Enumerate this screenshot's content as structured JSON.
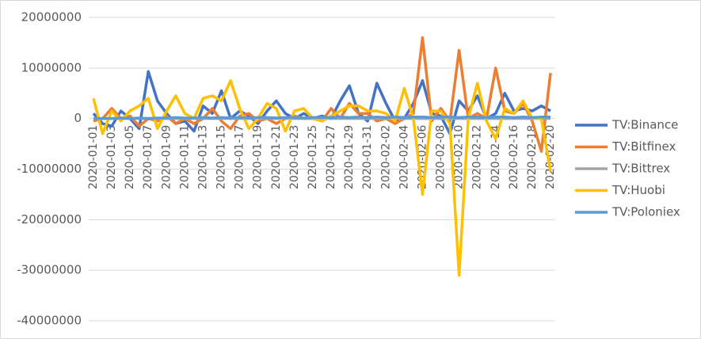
{
  "chart_data": {
    "type": "line",
    "categories": [
      "2020-01-01",
      null,
      "2020-01-03",
      null,
      "2020-01-05",
      null,
      "2020-01-07",
      null,
      "2020-01-09",
      null,
      "2020-01-11",
      null,
      "2020-01-13",
      null,
      "2020-01-15",
      null,
      "2020-01-17",
      null,
      "2020-01-19",
      null,
      "2020-01-21",
      null,
      "2020-01-23",
      null,
      "2020-01-25",
      null,
      "2020-01-27",
      null,
      "2020-01-29",
      null,
      "2020-01-31",
      null,
      "2020-02-02",
      null,
      "2020-02-04",
      null,
      "2020-02-06",
      null,
      "2020-02-08",
      null,
      "2020-02-10",
      null,
      "2020-02-12",
      null,
      "2020-02-14",
      null,
      "2020-02-16",
      null,
      "2020-02-18",
      null,
      "2020-02-20"
    ],
    "series": [
      {
        "name": "TV:Binance",
        "color": "#4472c4",
        "values": [
          1000000,
          -1000000,
          -1500000,
          1500000,
          0,
          -2000000,
          9300000,
          3500000,
          1000000,
          -1000000,
          -500000,
          -2500000,
          2500000,
          1000000,
          5500000,
          0,
          1500000,
          500000,
          -1000000,
          1500000,
          3500000,
          1000000,
          0,
          1000000,
          0,
          500000,
          0,
          3500000,
          6500000,
          1000000,
          -500000,
          7000000,
          3000000,
          -500000,
          0,
          3000000,
          7500000,
          1000000,
          500000,
          -3000000,
          3500000,
          1500000,
          4500000,
          0,
          1000000,
          5000000,
          1500000,
          2000000,
          1500000,
          2500000,
          1500000
        ]
      },
      {
        "name": "TV:Bitfinex",
        "color": "#ed7d31",
        "values": [
          -500000,
          0,
          2000000,
          0,
          500000,
          -1500000,
          0,
          -500000,
          500000,
          -1000000,
          0,
          -1000000,
          0,
          2000000,
          -500000,
          -2000000,
          500000,
          1000000,
          -500000,
          0,
          -1000000,
          0,
          500000,
          0,
          0,
          -500000,
          2000000,
          0,
          3000000,
          1000000,
          1000000,
          -500000,
          0,
          -1000000,
          0,
          1000000,
          16000000,
          -500000,
          2000000,
          -500000,
          13500000,
          0,
          1000000,
          0,
          10000000,
          1500000,
          1000000,
          3000000,
          -500000,
          -6500000,
          9000000
        ]
      },
      {
        "name": "TV:Bittrex",
        "color": "#a5a5a5",
        "values": [
          0,
          0,
          0,
          0,
          0,
          0,
          0,
          0,
          0,
          0,
          0,
          0,
          0,
          0,
          0,
          0,
          0,
          0,
          0,
          0,
          0,
          0,
          0,
          0,
          0,
          0,
          0,
          0,
          0,
          0,
          0,
          0,
          0,
          0,
          0,
          0,
          0,
          0,
          0,
          0,
          0,
          0,
          0,
          0,
          0,
          0,
          0,
          0,
          0,
          0,
          0
        ]
      },
      {
        "name": "TV:Huobi",
        "color": "#ffc000",
        "values": [
          4000000,
          -3000000,
          1500000,
          -500000,
          1500000,
          2500000,
          4000000,
          -2000000,
          1500000,
          4500000,
          1000000,
          0,
          4000000,
          4500000,
          3500000,
          7500000,
          2000000,
          -2000000,
          0,
          3000000,
          2000000,
          -2500000,
          1500000,
          2000000,
          0,
          -500000,
          500000,
          1500000,
          2500000,
          2500000,
          1500000,
          1500000,
          1000000,
          -500000,
          6000000,
          0,
          -15000000,
          1500000,
          1500000,
          -1000000,
          -31000000,
          0,
          7000000,
          -500000,
          -4000000,
          2000000,
          1000000,
          3500000,
          0,
          0,
          -10500000
        ]
      },
      {
        "name": "TV:Poloniex",
        "color": "#5b9bd5",
        "values": [
          0,
          0,
          0,
          100000,
          0,
          100000,
          0,
          100000,
          100000,
          200000,
          100000,
          100000,
          200000,
          100000,
          200000,
          100000,
          200000,
          100000,
          200000,
          200000,
          100000,
          200000,
          200000,
          100000,
          200000,
          200000,
          200000,
          300000,
          200000,
          300000,
          200000,
          300000,
          200000,
          300000,
          200000,
          300000,
          300000,
          200000,
          300000,
          300000,
          200000,
          300000,
          300000,
          200000,
          300000,
          300000,
          200000,
          300000,
          200000,
          300000,
          300000
        ]
      }
    ],
    "ylim": [
      -40000000,
      20000000
    ],
    "yticks": [
      -40000000,
      -30000000,
      -20000000,
      -10000000,
      0,
      10000000,
      20000000
    ],
    "grid": true,
    "legend": "right"
  }
}
